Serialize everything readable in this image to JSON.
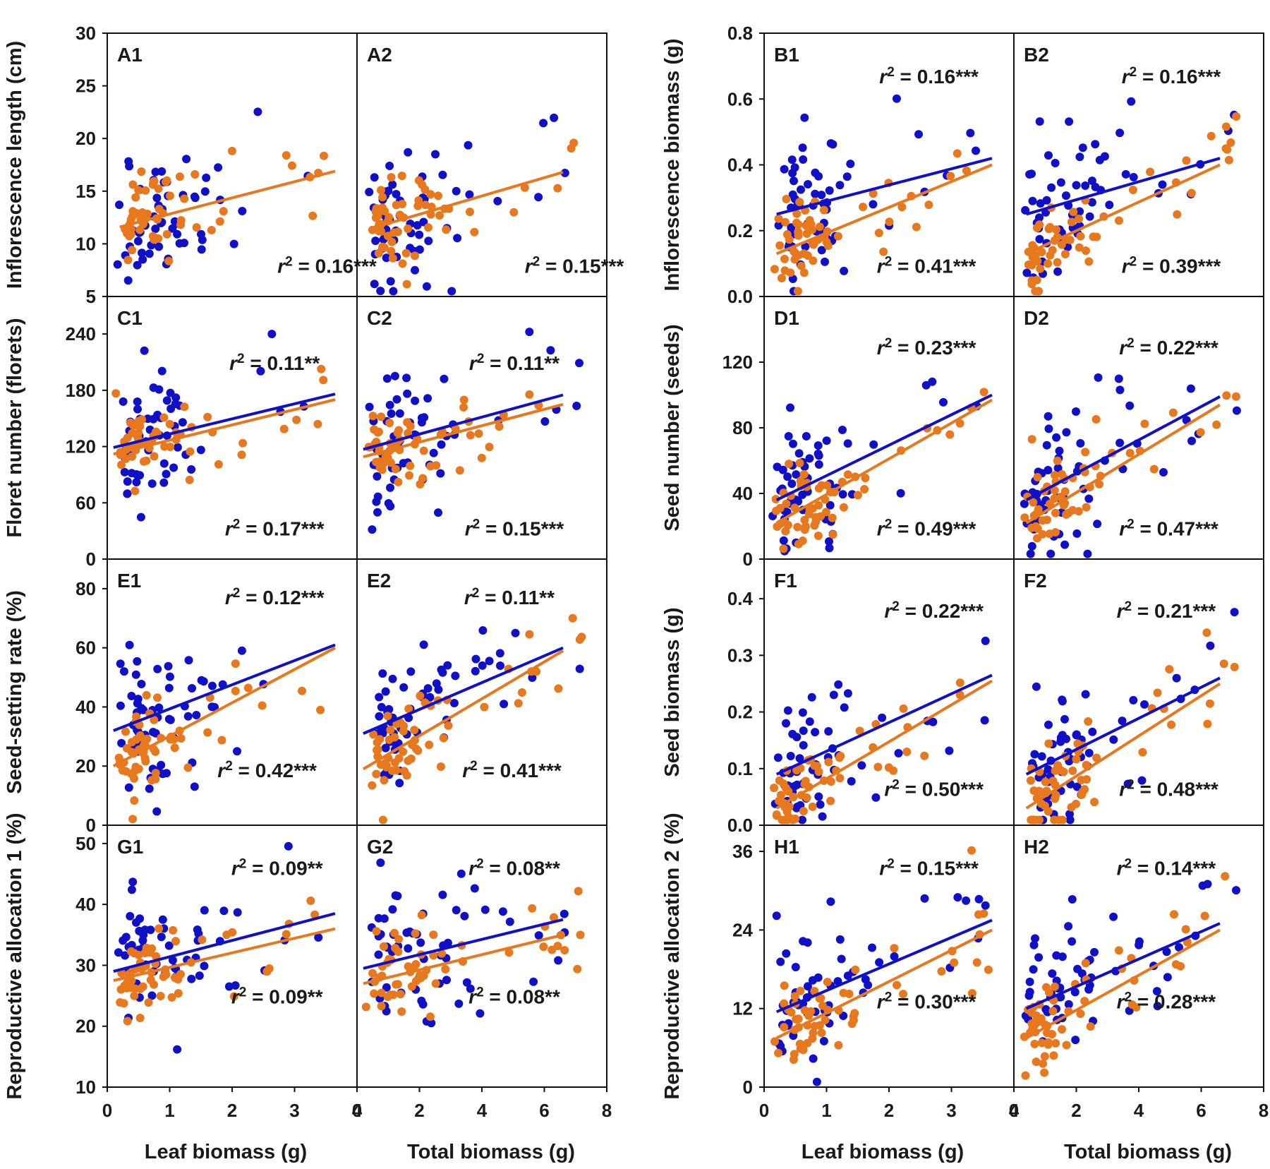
{
  "figure": {
    "colors": {
      "blue": "#1010c8",
      "orange": "#e8781e"
    },
    "left_xlabels": [
      "Leaf biomass (g)",
      "Total biomass (g)"
    ],
    "right_xlabels": [
      "Leaf biomass (g)",
      "Total biomass (g)"
    ]
  },
  "chart_data": [
    {
      "type": "scatter",
      "id": "A1",
      "title": "A1",
      "ylabel": "Inflorescence length (cm)",
      "xlabel": "Leaf biomass (g)",
      "xlim": [
        0,
        4
      ],
      "xticks": [
        0,
        1,
        2,
        3,
        4
      ],
      "ylim": [
        5,
        30
      ],
      "yticks": [
        5,
        10,
        15,
        20,
        25,
        30
      ],
      "series": [
        {
          "name": "blue",
          "fit": null,
          "r2": null
        },
        {
          "name": "orange",
          "fit": [
            [
              0.2,
              11.6
            ],
            [
              3.65,
              16.9
            ]
          ],
          "r2": "0.16***"
        }
      ]
    },
    {
      "type": "scatter",
      "id": "A2",
      "title": "A2",
      "ylabel": "",
      "xlabel": "Total biomass (g)",
      "xlim": [
        0,
        8
      ],
      "xticks": [
        0,
        2,
        4,
        6,
        8
      ],
      "ylim": [
        5,
        30
      ],
      "yticks": [
        5,
        10,
        15,
        20,
        25,
        30
      ],
      "series": [
        {
          "name": "blue",
          "fit": null,
          "r2": null
        },
        {
          "name": "orange",
          "fit": [
            [
              0.5,
              11.5
            ],
            [
              6.6,
              16.8
            ]
          ],
          "r2": "0.15***"
        }
      ]
    },
    {
      "type": "scatter",
      "id": "B1",
      "title": "B1",
      "ylabel": "Inflorescence biomass (g)",
      "xlabel": "Leaf biomass (g)",
      "xlim": [
        0,
        4
      ],
      "xticks": [
        0,
        1,
        2,
        3,
        4
      ],
      "ylim": [
        0,
        0.8
      ],
      "yticks": [
        0.0,
        0.2,
        0.4,
        0.6,
        0.8
      ],
      "series": [
        {
          "name": "blue",
          "fit": [
            [
              0.2,
              0.25
            ],
            [
              3.65,
              0.42
            ]
          ],
          "r2": "0.16***"
        },
        {
          "name": "orange",
          "fit": [
            [
              0.2,
              0.13
            ],
            [
              3.65,
              0.4
            ]
          ],
          "r2": "0.41***"
        }
      ]
    },
    {
      "type": "scatter",
      "id": "B2",
      "title": "B2",
      "ylabel": "",
      "xlabel": "Total biomass (g)",
      "xlim": [
        0,
        8
      ],
      "xticks": [
        0,
        2,
        4,
        6,
        8
      ],
      "ylim": [
        0,
        0.8
      ],
      "yticks": [
        0.0,
        0.2,
        0.4,
        0.6,
        0.8
      ],
      "series": [
        {
          "name": "blue",
          "fit": [
            [
              0.4,
              0.25
            ],
            [
              6.6,
              0.42
            ]
          ],
          "r2": "0.16***"
        },
        {
          "name": "orange",
          "fit": [
            [
              0.4,
              0.13
            ],
            [
              6.6,
              0.4
            ]
          ],
          "r2": "0.39***"
        }
      ]
    },
    {
      "type": "scatter",
      "id": "C1",
      "title": "C1",
      "ylabel": "Floret number (florets)",
      "xlabel": "Leaf biomass (g)",
      "xlim": [
        0,
        4
      ],
      "xticks": [
        0,
        1,
        2,
        3,
        4
      ],
      "ylim": [
        0,
        280
      ],
      "yticks": [
        0,
        60,
        120,
        180,
        240
      ],
      "series": [
        {
          "name": "blue",
          "fit": [
            [
              0.1,
              119
            ],
            [
              3.65,
              176
            ]
          ],
          "r2": "0.11**"
        },
        {
          "name": "orange",
          "fit": [
            [
              0.1,
              112
            ],
            [
              3.65,
              170
            ]
          ],
          "r2": "0.17***"
        }
      ]
    },
    {
      "type": "scatter",
      "id": "C2",
      "title": "C2",
      "ylabel": "",
      "xlabel": "Total biomass (g)",
      "xlim": [
        0,
        8
      ],
      "xticks": [
        0,
        2,
        4,
        6,
        8
      ],
      "ylim": [
        0,
        280
      ],
      "yticks": [
        0,
        60,
        120,
        180,
        240
      ],
      "series": [
        {
          "name": "blue",
          "fit": [
            [
              0.2,
              117
            ],
            [
              6.6,
              175
            ]
          ],
          "r2": "0.11**"
        },
        {
          "name": "orange",
          "fit": [
            [
              0.2,
              109
            ],
            [
              6.6,
              165
            ]
          ],
          "r2": "0.15***"
        }
      ]
    },
    {
      "type": "scatter",
      "id": "D1",
      "title": "D1",
      "ylabel": "Seed number (seeds)",
      "xlabel": "Leaf biomass (g)",
      "xlim": [
        0,
        4
      ],
      "xticks": [
        0,
        1,
        2,
        3,
        4
      ],
      "ylim": [
        0,
        160
      ],
      "yticks": [
        0,
        40,
        80,
        120
      ],
      "series": [
        {
          "name": "blue",
          "fit": [
            [
              0.2,
              36
            ],
            [
              3.65,
              100
            ]
          ],
          "r2": "0.23***"
        },
        {
          "name": "orange",
          "fit": [
            [
              0.2,
              22
            ],
            [
              3.65,
              97
            ]
          ],
          "r2": "0.49***"
        }
      ]
    },
    {
      "type": "scatter",
      "id": "D2",
      "title": "D2",
      "ylabel": "",
      "xlabel": "Total biomass (g)",
      "xlim": [
        0,
        8
      ],
      "xticks": [
        0,
        2,
        4,
        6,
        8
      ],
      "ylim": [
        0,
        160
      ],
      "yticks": [
        0,
        40,
        80,
        120
      ],
      "series": [
        {
          "name": "blue",
          "fit": [
            [
              0.4,
              36
            ],
            [
              6.6,
              99
            ]
          ],
          "r2": "0.22***"
        },
        {
          "name": "orange",
          "fit": [
            [
              0.4,
              22
            ],
            [
              6.6,
              94
            ]
          ],
          "r2": "0.47***"
        }
      ]
    },
    {
      "type": "scatter",
      "id": "E1",
      "title": "E1",
      "ylabel": "Seed-setting rate (%)",
      "xlabel": "Leaf biomass (g)",
      "xlim": [
        0,
        4
      ],
      "xticks": [
        0,
        1,
        2,
        3,
        4
      ],
      "ylim": [
        0,
        90
      ],
      "yticks": [
        0,
        20,
        40,
        60,
        80
      ],
      "series": [
        {
          "name": "blue",
          "fit": [
            [
              0.1,
              32
            ],
            [
              3.65,
              61
            ]
          ],
          "r2": "0.12***"
        },
        {
          "name": "orange",
          "fit": [
            [
              0.1,
              20
            ],
            [
              3.65,
              60
            ]
          ],
          "r2": "0.42***"
        }
      ]
    },
    {
      "type": "scatter",
      "id": "E2",
      "title": "E2",
      "ylabel": "",
      "xlabel": "Total biomass (g)",
      "xlim": [
        0,
        8
      ],
      "xticks": [
        0,
        2,
        4,
        6,
        8
      ],
      "ylim": [
        0,
        90
      ],
      "yticks": [
        0,
        20,
        40,
        60,
        80
      ],
      "series": [
        {
          "name": "blue",
          "fit": [
            [
              0.2,
              31
            ],
            [
              6.6,
              60
            ]
          ],
          "r2": "0.11**"
        },
        {
          "name": "orange",
          "fit": [
            [
              0.2,
              19
            ],
            [
              6.6,
              59
            ]
          ],
          "r2": "0.41***"
        }
      ]
    },
    {
      "type": "scatter",
      "id": "F1",
      "title": "F1",
      "ylabel": "Seed biomass (g)",
      "xlabel": "Leaf biomass (g)",
      "xlim": [
        0,
        4
      ],
      "xticks": [
        0,
        1,
        2,
        3,
        4
      ],
      "ylim": [
        0,
        0.47
      ],
      "yticks": [
        0.0,
        0.1,
        0.2,
        0.3,
        0.4
      ],
      "series": [
        {
          "name": "blue",
          "fit": [
            [
              0.2,
              0.09
            ],
            [
              3.65,
              0.265
            ]
          ],
          "r2": "0.22***"
        },
        {
          "name": "orange",
          "fit": [
            [
              0.2,
              0.03
            ],
            [
              3.65,
              0.255
            ]
          ],
          "r2": "0.50***"
        }
      ]
    },
    {
      "type": "scatter",
      "id": "F2",
      "title": "F2",
      "ylabel": "",
      "xlabel": "Total biomass (g)",
      "xlim": [
        0,
        8
      ],
      "xticks": [
        0,
        2,
        4,
        6,
        8
      ],
      "ylim": [
        0,
        0.47
      ],
      "yticks": [
        0.0,
        0.1,
        0.2,
        0.3,
        0.4
      ],
      "series": [
        {
          "name": "blue",
          "fit": [
            [
              0.4,
              0.09
            ],
            [
              6.6,
              0.26
            ]
          ],
          "r2": "0.21***"
        },
        {
          "name": "orange",
          "fit": [
            [
              0.4,
              0.03
            ],
            [
              6.6,
              0.25
            ]
          ],
          "r2": "0.48***"
        }
      ]
    },
    {
      "type": "scatter",
      "id": "G1",
      "title": "G1",
      "ylabel": "Reproductive allocation 1 (%)",
      "xlabel": "Leaf biomass (g)",
      "xlim": [
        0,
        4
      ],
      "xticks": [
        0,
        1,
        2,
        3,
        4
      ],
      "ylim": [
        10,
        53
      ],
      "yticks": [
        10,
        20,
        30,
        40,
        50
      ],
      "series": [
        {
          "name": "blue",
          "fit": [
            [
              0.1,
              29
            ],
            [
              3.65,
              38.5
            ]
          ],
          "r2": "0.09**"
        },
        {
          "name": "orange",
          "fit": [
            [
              0.1,
              27.5
            ],
            [
              3.65,
              36
            ]
          ],
          "r2": "0.09**"
        }
      ]
    },
    {
      "type": "scatter",
      "id": "G2",
      "title": "G2",
      "ylabel": "",
      "xlabel": "Total biomass (g)",
      "xlim": [
        0,
        8
      ],
      "xticks": [
        0,
        2,
        4,
        6,
        8
      ],
      "ylim": [
        10,
        53
      ],
      "yticks": [
        10,
        20,
        30,
        40,
        50
      ],
      "series": [
        {
          "name": "blue",
          "fit": [
            [
              0.2,
              29.5
            ],
            [
              6.6,
              37.5
            ]
          ],
          "r2": "0.08**"
        },
        {
          "name": "orange",
          "fit": [
            [
              0.2,
              27
            ],
            [
              6.6,
              35
            ]
          ],
          "r2": "0.08**"
        }
      ]
    },
    {
      "type": "scatter",
      "id": "H1",
      "title": "H1",
      "ylabel": "Reproductive allocation 2 (%)",
      "xlabel": "Leaf biomass (g)",
      "xlim": [
        0,
        4
      ],
      "xticks": [
        0,
        1,
        2,
        3,
        4
      ],
      "ylim": [
        0,
        40
      ],
      "yticks": [
        0,
        12,
        24,
        36
      ],
      "series": [
        {
          "name": "blue",
          "fit": [
            [
              0.2,
              11.5
            ],
            [
              3.65,
              25.5
            ]
          ],
          "r2": "0.15***"
        },
        {
          "name": "orange",
          "fit": [
            [
              0.2,
              7.5
            ],
            [
              3.65,
              24
            ]
          ],
          "r2": "0.30***"
        }
      ]
    },
    {
      "type": "scatter",
      "id": "H2",
      "title": "H2",
      "ylabel": "",
      "xlabel": "Total biomass (g)",
      "xlim": [
        0,
        8
      ],
      "xticks": [
        0,
        2,
        4,
        6,
        8
      ],
      "ylim": [
        0,
        40
      ],
      "yticks": [
        0,
        12,
        24,
        36
      ],
      "series": [
        {
          "name": "blue",
          "fit": [
            [
              0.4,
              12
            ],
            [
              6.6,
              25
            ]
          ],
          "r2": "0.14***"
        },
        {
          "name": "orange",
          "fit": [
            [
              0.4,
              7.5
            ],
            [
              6.6,
              24
            ]
          ],
          "r2": "0.28***"
        }
      ]
    }
  ]
}
